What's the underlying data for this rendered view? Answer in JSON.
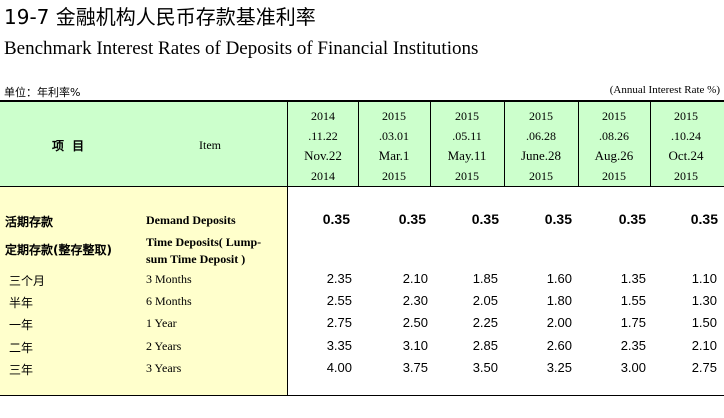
{
  "title_cn": "19-7 金融机构人民币存款基准利率",
  "title_en": "Benchmark Interest Rates of Deposits of Financial Institutions",
  "unit_left": "单位：年利率%",
  "unit_right": "(Annual Interest Rate %)",
  "header": {
    "item_cn": "项 目",
    "item_en": "Item"
  },
  "columns": [
    {
      "year_top": "2014",
      "date_code": ".11.22",
      "date_en": "Nov.22",
      "year_bottom": "2014"
    },
    {
      "year_top": "2015",
      "date_code": ".03.01",
      "date_en": "Mar.1",
      "year_bottom": "2015"
    },
    {
      "year_top": "2015",
      "date_code": ".05.11",
      "date_en": "May.11",
      "year_bottom": "2015"
    },
    {
      "year_top": "2015",
      "date_code": ".06.28",
      "date_en": "June.28",
      "year_bottom": "2015"
    },
    {
      "year_top": "2015",
      "date_code": ".08.26",
      "date_en": "Aug.26",
      "year_bottom": "2015"
    },
    {
      "year_top": "2015",
      "date_code": ".10.24",
      "date_en": "Oct.24",
      "year_bottom": "2015"
    }
  ],
  "rows": [
    {
      "cn": "活期存款",
      "en": "Demand Deposits",
      "values": [
        "0.35",
        "0.35",
        "0.35",
        "0.35",
        "0.35",
        "0.35"
      ]
    },
    {
      "cn": "定期存款(整存整取)",
      "en": "Time Deposits( Lump-",
      "en2": "sum Time Deposit )",
      "values": []
    },
    {
      "cn": "三个月",
      "en": "3 Months",
      "values": [
        "2.35",
        "2.10",
        "1.85",
        "1.60",
        "1.35",
        "1.10"
      ]
    },
    {
      "cn": "半年",
      "en": "6 Months",
      "values": [
        "2.55",
        "2.30",
        "2.05",
        "1.80",
        "1.55",
        "1.30"
      ]
    },
    {
      "cn": "一年",
      "en": "1 Year",
      "values": [
        "2.75",
        "2.50",
        "2.25",
        "2.00",
        "1.75",
        "1.50"
      ]
    },
    {
      "cn": "二年",
      "en": "2 Years",
      "values": [
        "3.35",
        "3.10",
        "2.85",
        "2.60",
        "2.35",
        "2.10"
      ]
    },
    {
      "cn": "三年",
      "en": "3 Years",
      "values": [
        "4.00",
        "3.75",
        "3.50",
        "3.25",
        "3.00",
        "2.75"
      ]
    }
  ]
}
